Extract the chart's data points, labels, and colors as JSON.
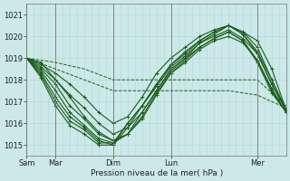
{
  "bg_color": "#cce8e8",
  "grid_color_v": "#b0d8d8",
  "grid_color_h": "#b0d8d8",
  "line_color": "#1a5c1a",
  "ylim": [
    1014.5,
    1021.5
  ],
  "xlim": [
    0,
    108
  ],
  "ytick_positions": [
    1015,
    1016,
    1017,
    1018,
    1019,
    1020,
    1021
  ],
  "xtick_positions": [
    0,
    12,
    36,
    60,
    96
  ],
  "xtick_labels": [
    "Sam",
    "Mar",
    "Dim",
    "Lun",
    "Mer"
  ],
  "xlabel": "Pression niveau de la mer( hPa )",
  "sep_x": [
    0,
    12,
    36,
    60,
    96
  ],
  "series": [
    {
      "x": [
        0,
        12,
        24,
        36,
        48,
        60,
        72,
        84,
        96,
        108
      ],
      "y": [
        1019.0,
        1018.8,
        1018.5,
        1018.0,
        1018.0,
        1018.0,
        1018.0,
        1018.0,
        1018.0,
        1016.8
      ],
      "style": "--",
      "marker": "",
      "lw": 0.7
    },
    {
      "x": [
        0,
        12,
        24,
        36,
        48,
        60,
        72,
        84,
        96,
        108
      ],
      "y": [
        1019.0,
        1018.5,
        1018.0,
        1017.5,
        1017.5,
        1017.5,
        1017.5,
        1017.5,
        1017.3,
        1016.7
      ],
      "style": "--",
      "marker": "",
      "lw": 0.7
    },
    {
      "x": [
        0,
        6,
        12,
        18,
        24,
        30,
        36,
        42,
        48,
        54,
        60,
        66,
        72,
        78,
        84,
        90,
        96,
        102,
        108
      ],
      "y": [
        1019.0,
        1018.7,
        1018.3,
        1017.8,
        1017.2,
        1016.5,
        1016.0,
        1016.3,
        1017.2,
        1018.3,
        1019.0,
        1019.5,
        1020.0,
        1020.3,
        1020.5,
        1020.2,
        1019.8,
        1018.5,
        1016.6
      ],
      "style": "-",
      "marker": "+",
      "lw": 0.8
    },
    {
      "x": [
        0,
        6,
        12,
        18,
        24,
        30,
        36,
        42,
        48,
        54,
        60,
        66,
        72,
        78,
        84,
        90,
        96,
        102,
        108
      ],
      "y": [
        1019.0,
        1018.6,
        1018.0,
        1017.3,
        1016.7,
        1016.0,
        1015.5,
        1015.8,
        1016.8,
        1017.8,
        1018.7,
        1019.2,
        1019.8,
        1020.2,
        1020.5,
        1020.2,
        1019.5,
        1018.0,
        1016.6
      ],
      "style": "-",
      "marker": "+",
      "lw": 0.8
    },
    {
      "x": [
        0,
        6,
        12,
        18,
        24,
        30,
        36,
        42,
        48,
        54,
        60,
        66,
        72,
        78,
        84,
        90,
        96,
        102,
        108
      ],
      "y": [
        1019.0,
        1018.5,
        1017.8,
        1016.8,
        1016.2,
        1015.5,
        1015.2,
        1015.5,
        1016.5,
        1017.5,
        1018.5,
        1019.0,
        1019.7,
        1020.0,
        1020.3,
        1019.9,
        1019.2,
        1017.8,
        1016.6
      ],
      "style": "-",
      "marker": "+",
      "lw": 0.8
    },
    {
      "x": [
        0,
        6,
        12,
        18,
        24,
        30,
        36,
        42,
        48,
        54,
        60,
        66,
        72,
        78,
        84,
        90,
        96,
        102,
        108
      ],
      "y": [
        1019.0,
        1018.4,
        1017.5,
        1016.5,
        1015.9,
        1015.3,
        1015.1,
        1015.5,
        1016.3,
        1017.4,
        1018.3,
        1018.9,
        1019.5,
        1019.9,
        1020.2,
        1019.8,
        1018.9,
        1017.5,
        1016.5
      ],
      "style": "-",
      "marker": "+",
      "lw": 0.8
    },
    {
      "x": [
        0,
        6,
        12,
        18,
        24,
        30,
        36,
        42,
        48,
        54,
        60,
        66,
        72,
        78,
        84,
        90,
        96,
        102,
        108
      ],
      "y": [
        1019.0,
        1018.3,
        1017.2,
        1016.3,
        1015.8,
        1015.2,
        1015.0,
        1015.8,
        1016.5,
        1017.5,
        1018.4,
        1019.0,
        1019.5,
        1019.9,
        1020.2,
        1019.8,
        1018.8,
        1017.4,
        1016.5
      ],
      "style": "-",
      "marker": "+",
      "lw": 0.8
    },
    {
      "x": [
        0,
        6,
        12,
        18,
        24,
        30,
        36,
        42,
        48,
        54,
        60,
        66,
        72,
        78,
        84,
        90,
        96,
        102,
        108
      ],
      "y": [
        1019.0,
        1018.2,
        1017.0,
        1016.1,
        1015.7,
        1015.1,
        1015.1,
        1016.0,
        1016.8,
        1017.7,
        1018.6,
        1019.1,
        1019.7,
        1020.1,
        1020.5,
        1020.1,
        1019.2,
        1017.8,
        1016.6
      ],
      "style": "-",
      "marker": "+",
      "lw": 0.8
    },
    {
      "x": [
        0,
        6,
        12,
        18,
        24,
        30,
        36,
        42,
        48,
        54,
        60,
        66,
        72,
        78,
        84,
        90,
        96,
        102,
        108
      ],
      "y": [
        1019.0,
        1018.1,
        1016.8,
        1015.9,
        1015.5,
        1015.0,
        1015.0,
        1016.0,
        1016.8,
        1017.8,
        1018.7,
        1019.3,
        1019.8,
        1020.2,
        1020.5,
        1020.1,
        1019.3,
        1018.0,
        1016.6
      ],
      "style": "-",
      "marker": "+",
      "lw": 0.8
    },
    {
      "x": [
        0,
        6,
        12,
        18,
        24,
        30,
        36,
        42,
        48,
        54,
        60,
        66,
        72,
        78,
        84,
        90,
        96,
        102,
        108
      ],
      "y": [
        1019.0,
        1018.8,
        1018.0,
        1017.2,
        1016.3,
        1015.6,
        1015.2,
        1015.5,
        1016.2,
        1017.3,
        1018.3,
        1018.8,
        1019.4,
        1019.8,
        1020.0,
        1019.7,
        1018.9,
        1017.6,
        1016.5
      ],
      "style": "-",
      "marker": "+",
      "lw": 0.8
    }
  ]
}
